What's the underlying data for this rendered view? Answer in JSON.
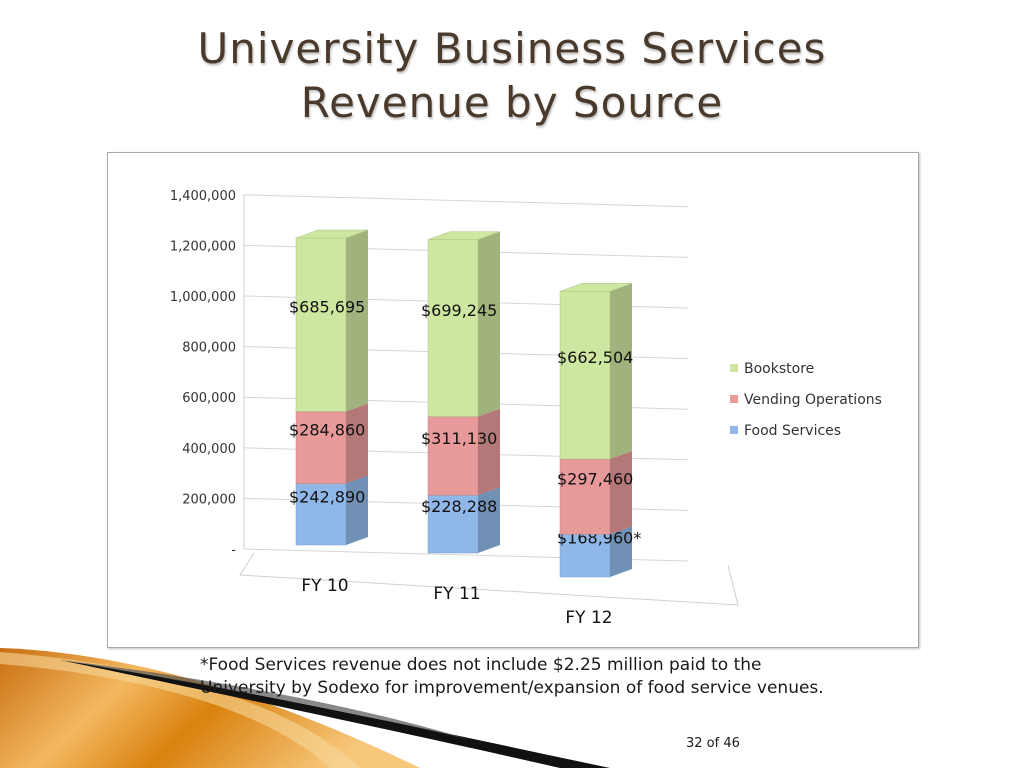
{
  "slide": {
    "title_line1": "University Business Services",
    "title_line2": "Revenue by Source",
    "footnote_line1": "*Food Services revenue does not include $2.25 million paid to the",
    "footnote_line2": "University by Sodexo for improvement/expansion of food service venues.",
    "page_number": "32 of 46"
  },
  "chart_data": {
    "type": "bar",
    "stacked": true,
    "three_d": true,
    "categories": [
      "FY 10",
      "FY 11",
      "FY 12"
    ],
    "series": [
      {
        "name": "Food Services",
        "values": [
          242890,
          228288,
          168960
        ],
        "labels": [
          "$242,890",
          "$228,288",
          "$168,960*"
        ],
        "color": "#8fb8e8"
      },
      {
        "name": "Vending Operations",
        "values": [
          284860,
          311130,
          297460
        ],
        "labels": [
          "$284,860",
          "$311,130",
          "$297,460"
        ],
        "color": "#e89a9a"
      },
      {
        "name": "Bookstore",
        "values": [
          685695,
          699245,
          662504
        ],
        "labels": [
          "$685,695",
          "$699,245",
          "$662,504"
        ],
        "color": "#cde6a0"
      }
    ],
    "y_ticks": [
      "-",
      "200,000",
      "400,000",
      "600,000",
      "800,000",
      "1,000,000",
      "1,200,000",
      "1,400,000"
    ],
    "ylim": [
      0,
      1400000
    ],
    "grid": true,
    "legend_position": "right"
  },
  "colors": {
    "title": "#4a3a2c",
    "deco_orange": "#e08a1a",
    "deco_black": "#111111"
  }
}
